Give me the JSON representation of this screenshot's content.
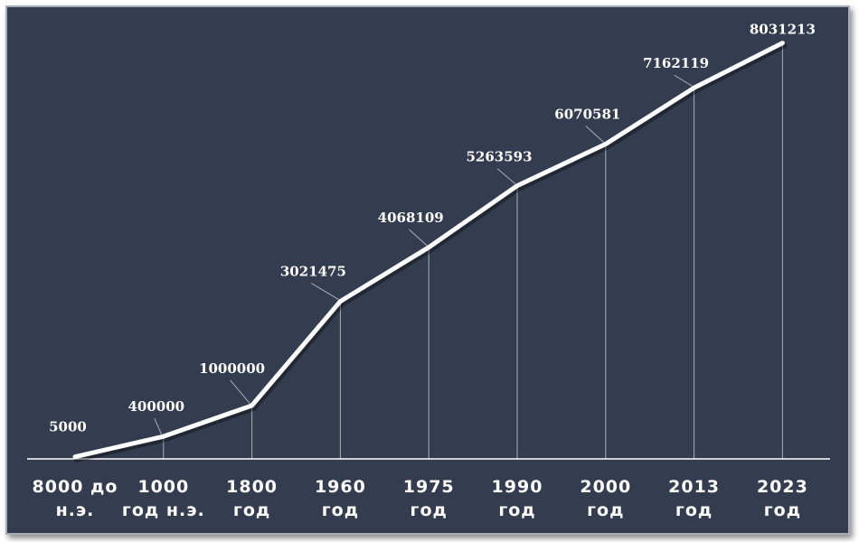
{
  "chart_data": {
    "type": "line",
    "title": "",
    "xlabel": "",
    "ylabel": "",
    "categories": [
      [
        "8000 до",
        "н.э."
      ],
      [
        "1000",
        "год н.э."
      ],
      [
        "1800",
        "год"
      ],
      [
        "1960",
        "год"
      ],
      [
        "1975",
        "год"
      ],
      [
        "1990",
        "год"
      ],
      [
        "2000",
        "год"
      ],
      [
        "2013",
        "год"
      ],
      [
        "2023",
        "год"
      ]
    ],
    "values": [
      5000,
      400000,
      1000000,
      3021475,
      4068109,
      5263593,
      6070581,
      7162119,
      8031213
    ],
    "data_labels": [
      "5000",
      "400000",
      "1000000",
      "3021475",
      "4068109",
      "5263593",
      "6070581",
      "7162119",
      "8031213"
    ],
    "ylim": [
      0,
      8200000
    ],
    "grid": false,
    "legend": "none",
    "colors": {
      "background": "#333d4f",
      "line": "#ffffff",
      "text": "#ffffff",
      "axis": "#ffffff",
      "drop_lines": "#c9ced6"
    }
  }
}
